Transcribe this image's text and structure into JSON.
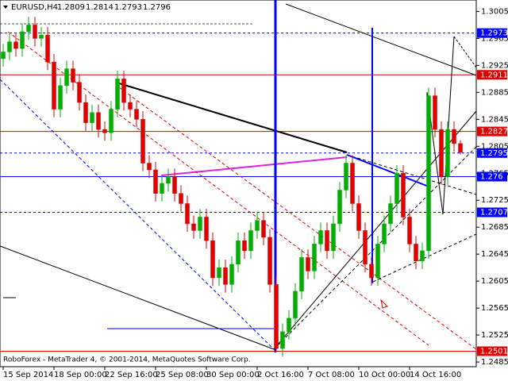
{
  "chart_data": {
    "type": "candlestick",
    "symbol": "EURUSD,H4",
    "footer": "RoboForex - MetaTrader 4, © 2001-2014, MetaQuotes Software Corp.",
    "up_color": "#00b000",
    "down_color": "#e00000",
    "open": [
      1.2935,
      1.2945,
      1.296,
      1.295,
      1.2975,
      1.2985,
      1.2965,
      1.297,
      1.293,
      1.286,
      1.2895,
      1.292,
      1.29,
      1.287,
      1.284,
      1.2855,
      1.283,
      1.2825,
      1.286,
      1.2905,
      1.287,
      1.286,
      1.2845,
      1.278,
      1.277,
      1.2735,
      1.275,
      1.276,
      1.2735,
      1.272,
      1.269,
      1.268,
      1.27,
      1.2665,
      1.261,
      1.2625,
      1.26,
      1.263,
      1.2665,
      1.265,
      1.268,
      1.2695,
      1.267,
      1.26,
      1.2505,
      1.253,
      1.255,
      1.259,
      1.264,
      1.262,
      1.266,
      1.268,
      1.265,
      1.269,
      1.274,
      1.278,
      1.272,
      1.268,
      1.263,
      1.261,
      1.266,
      1.269,
      1.272,
      1.2765,
      1.27,
      1.266,
      1.2635,
      1.265,
      1.288,
      1.283,
      1.276,
      1.283,
      1.2809
    ],
    "high": [
      1.2957,
      1.2972,
      1.2972,
      1.2987,
      1.2997,
      1.2997,
      1.2982,
      1.2982,
      1.2942,
      1.2907,
      1.2932,
      1.2932,
      1.2912,
      1.2882,
      1.2867,
      1.2867,
      1.2842,
      1.2872,
      1.2917,
      1.2917,
      1.2882,
      1.2872,
      1.2857,
      1.2792,
      1.2782,
      1.2762,
      1.2772,
      1.2772,
      1.2747,
      1.2732,
      1.2702,
      1.2712,
      1.2712,
      1.2677,
      1.2637,
      1.2637,
      1.2642,
      1.2677,
      1.2677,
      1.2692,
      1.2707,
      1.2707,
      1.2682,
      1.2612,
      1.2542,
      1.2562,
      1.2602,
      1.2652,
      1.2652,
      1.2672,
      1.2692,
      1.2692,
      1.2702,
      1.2752,
      1.2792,
      1.2792,
      1.2732,
      1.2692,
      1.2642,
      1.2672,
      1.2702,
      1.2732,
      1.2777,
      1.2777,
      1.2712,
      1.2672,
      1.2662,
      1.2892,
      1.2892,
      1.2842,
      1.2842,
      1.2842,
      1.2814
    ],
    "low": [
      1.2923,
      1.2933,
      1.2938,
      1.2938,
      1.2963,
      1.2953,
      1.2953,
      1.2918,
      1.2848,
      1.2848,
      1.2883,
      1.2888,
      1.2858,
      1.2828,
      1.2828,
      1.2818,
      1.2813,
      1.2813,
      1.2848,
      1.2858,
      1.2848,
      1.2833,
      1.2768,
      1.2758,
      1.2723,
      1.2723,
      1.2738,
      1.2723,
      1.2708,
      1.2678,
      1.2668,
      1.2668,
      1.2653,
      1.2598,
      1.2598,
      1.2588,
      1.2588,
      1.2618,
      1.2638,
      1.2638,
      1.2668,
      1.2658,
      1.2588,
      1.2499,
      1.2493,
      1.2518,
      1.2538,
      1.2578,
      1.2608,
      1.2608,
      1.2648,
      1.2638,
      1.2638,
      1.2678,
      1.2728,
      1.2708,
      1.2668,
      1.2618,
      1.2598,
      1.2598,
      1.2648,
      1.2678,
      1.2708,
      1.2688,
      1.2648,
      1.2623,
      1.2623,
      1.2638,
      1.2818,
      1.2748,
      1.2748,
      1.2797,
      1.2793
    ],
    "close": [
      1.2945,
      1.296,
      1.295,
      1.2975,
      1.2985,
      1.2965,
      1.297,
      1.293,
      1.286,
      1.2895,
      1.292,
      1.29,
      1.287,
      1.284,
      1.2855,
      1.283,
      1.2825,
      1.286,
      1.2905,
      1.287,
      1.286,
      1.2845,
      1.278,
      1.277,
      1.2735,
      1.275,
      1.276,
      1.2735,
      1.272,
      1.269,
      1.268,
      1.27,
      1.2665,
      1.261,
      1.2625,
      1.26,
      1.263,
      1.2665,
      1.265,
      1.268,
      1.2695,
      1.267,
      1.26,
      1.2505,
      1.253,
      1.255,
      1.259,
      1.264,
      1.262,
      1.266,
      1.268,
      1.265,
      1.269,
      1.274,
      1.278,
      1.272,
      1.268,
      1.263,
      1.261,
      1.266,
      1.269,
      1.272,
      1.2765,
      1.27,
      1.266,
      1.2635,
      1.265,
      1.288,
      1.283,
      1.276,
      1.283,
      1.2809,
      1.2796
    ],
    "xlim": [
      -0.5,
      74.5
    ],
    "xticks": [
      {
        "value": 0,
        "label": "15 Sep 2014"
      },
      {
        "value": 8,
        "label": "18 Sep 00:00"
      },
      {
        "value": 16,
        "label": "22 Sep 16:00"
      },
      {
        "value": 24,
        "label": "25 Sep 08:00"
      },
      {
        "value": 32,
        "label": "30 Sep 00:00"
      },
      {
        "value": 40,
        "label": "2 Oct 16:00"
      },
      {
        "value": 48,
        "label": "7 Oct 08:00"
      },
      {
        "value": 56,
        "label": "10 Oct 00:00"
      },
      {
        "value": 64,
        "label": "14 Oct 16:00"
      }
    ],
    "ylim": [
      1.2478,
      1.3022
    ],
    "yticks": [
      1.3005,
      1.2965,
      1.2925,
      1.2885,
      1.2845,
      1.2805,
      1.2765,
      1.2725,
      1.2685,
      1.2645,
      1.2605,
      1.2565,
      1.2525,
      1.2485
    ],
    "levels": [
      {
        "value": 1.2973,
        "color": "#0000ff",
        "style": "dash"
      },
      {
        "value": 1.2911,
        "color": "#e00000",
        "style": "solid"
      },
      {
        "value": 1.2827,
        "color": "#e00000",
        "style": "solid"
      },
      {
        "value": 1.2795,
        "color": "#0000ff",
        "style": "dash"
      },
      {
        "value": 1.276,
        "color": "#0000ff",
        "style": "solid"
      },
      {
        "value": 1.2707,
        "color": "#0000ff",
        "style": "dash"
      },
      {
        "value": 1.2501,
        "color": "#e00000",
        "style": "solid"
      }
    ]
  }
}
